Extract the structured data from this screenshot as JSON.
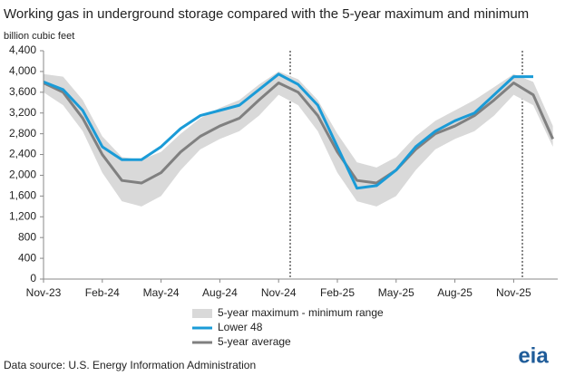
{
  "chart_data": {
    "type": "line",
    "title": "Working gas in underground storage compared with the 5-year maximum and minimum",
    "y_label": "billion cubic feet",
    "source": "Data source: U.S. Energy Information Administration",
    "logo": "eia",
    "categories": [
      "Nov-23",
      null,
      null,
      "Feb-24",
      null,
      null,
      "May-24",
      null,
      null,
      "Aug-24",
      null,
      null,
      "Nov-24",
      null,
      null,
      "Feb-25",
      null,
      null,
      "May-25",
      null,
      null,
      "Aug-25",
      null,
      null,
      "Nov-25",
      null,
      null
    ],
    "ylim": [
      0,
      4400
    ],
    "yticks": [
      0,
      400,
      800,
      {
        "value": 1200,
        "label": "1,200"
      },
      {
        "value": 1600,
        "label": "1,600"
      },
      {
        "value": 2000,
        "label": "2,000"
      },
      {
        "value": 2400,
        "label": "2,400"
      },
      {
        "value": 2800,
        "label": "2,800"
      },
      {
        "value": 3200,
        "label": "3,200"
      },
      {
        "value": 3600,
        "label": "3,600"
      },
      {
        "value": 4000,
        "label": "4,000"
      },
      {
        "value": 4400,
        "label": "4,400"
      }
    ],
    "grid": false,
    "series": [
      {
        "name": "5-year maximum - minimum range",
        "color": "#d9d9d9",
        "high": [
          3950,
          3900,
          3450,
          2750,
          2350,
          2300,
          2450,
          2800,
          3100,
          3300,
          3450,
          3750,
          4000,
          3850,
          3450,
          2800,
          2250,
          2150,
          2350,
          2750,
          3050,
          3250,
          3450,
          3700,
          3950,
          3800,
          2950
        ],
        "low": [
          3600,
          3350,
          2850,
          2050,
          1500,
          1400,
          1600,
          2100,
          2500,
          2700,
          2850,
          3150,
          3550,
          3350,
          2850,
          2050,
          1500,
          1400,
          1600,
          2100,
          2500,
          2700,
          2850,
          3150,
          3550,
          3350,
          2550
        ]
      },
      {
        "name": "Lower 48",
        "color": "#1a9bd7",
        "values": [
          3800,
          3650,
          3250,
          2550,
          2300,
          2300,
          2550,
          2900,
          3150,
          3250,
          3350,
          3650,
          3950,
          3750,
          3350,
          2550,
          1750,
          1800,
          2100,
          2550,
          2850,
          3050,
          3200,
          3550,
          3900,
          3900,
          null
        ]
      },
      {
        "name": "5-year average",
        "color": "#808080",
        "values": [
          3780,
          3600,
          3100,
          2400,
          1900,
          1850,
          2050,
          2450,
          2750,
          2950,
          3100,
          3450,
          3780,
          3600,
          3150,
          2450,
          1900,
          1850,
          2100,
          2500,
          2800,
          2950,
          3150,
          3450,
          3780,
          3550,
          2700
        ]
      }
    ]
  }
}
